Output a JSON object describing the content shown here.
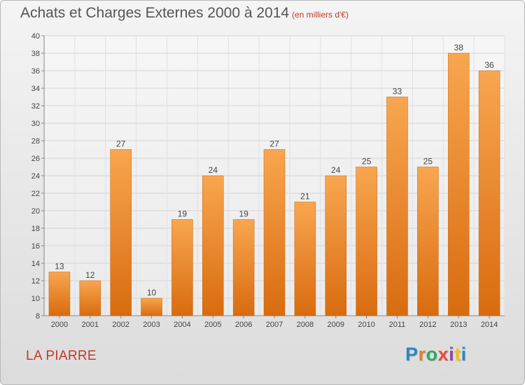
{
  "header": {
    "title": "Achats et Charges Externes 2000 à 2014",
    "unit": "(en milliers d'€)"
  },
  "footer": {
    "commune": "LA PIARRE",
    "logo": "Proxiti",
    "logo_colors": [
      "#2e86c1",
      "#e67e22",
      "#27ae60",
      "#e74c3c",
      "#8e44ad",
      "#f1c40f",
      "#2e86c1"
    ]
  },
  "chart_data": {
    "type": "bar",
    "title": "Achats et Charges Externes 2000 à 2014",
    "subtitle": "(en milliers d'€)",
    "categories": [
      "2000",
      "2001",
      "2002",
      "2003",
      "2004",
      "2005",
      "2006",
      "2007",
      "2008",
      "2009",
      "2010",
      "2011",
      "2012",
      "2013",
      "2014"
    ],
    "values": [
      13,
      12,
      27,
      10,
      19,
      24,
      19,
      27,
      21,
      24,
      25,
      33,
      25,
      38,
      36
    ],
    "ylim": [
      8,
      40
    ],
    "yticks": [
      8,
      10,
      12,
      14,
      16,
      18,
      20,
      22,
      24,
      26,
      28,
      30,
      32,
      34,
      36,
      38,
      40
    ],
    "grid": true,
    "bar_color": "#f0932b"
  }
}
